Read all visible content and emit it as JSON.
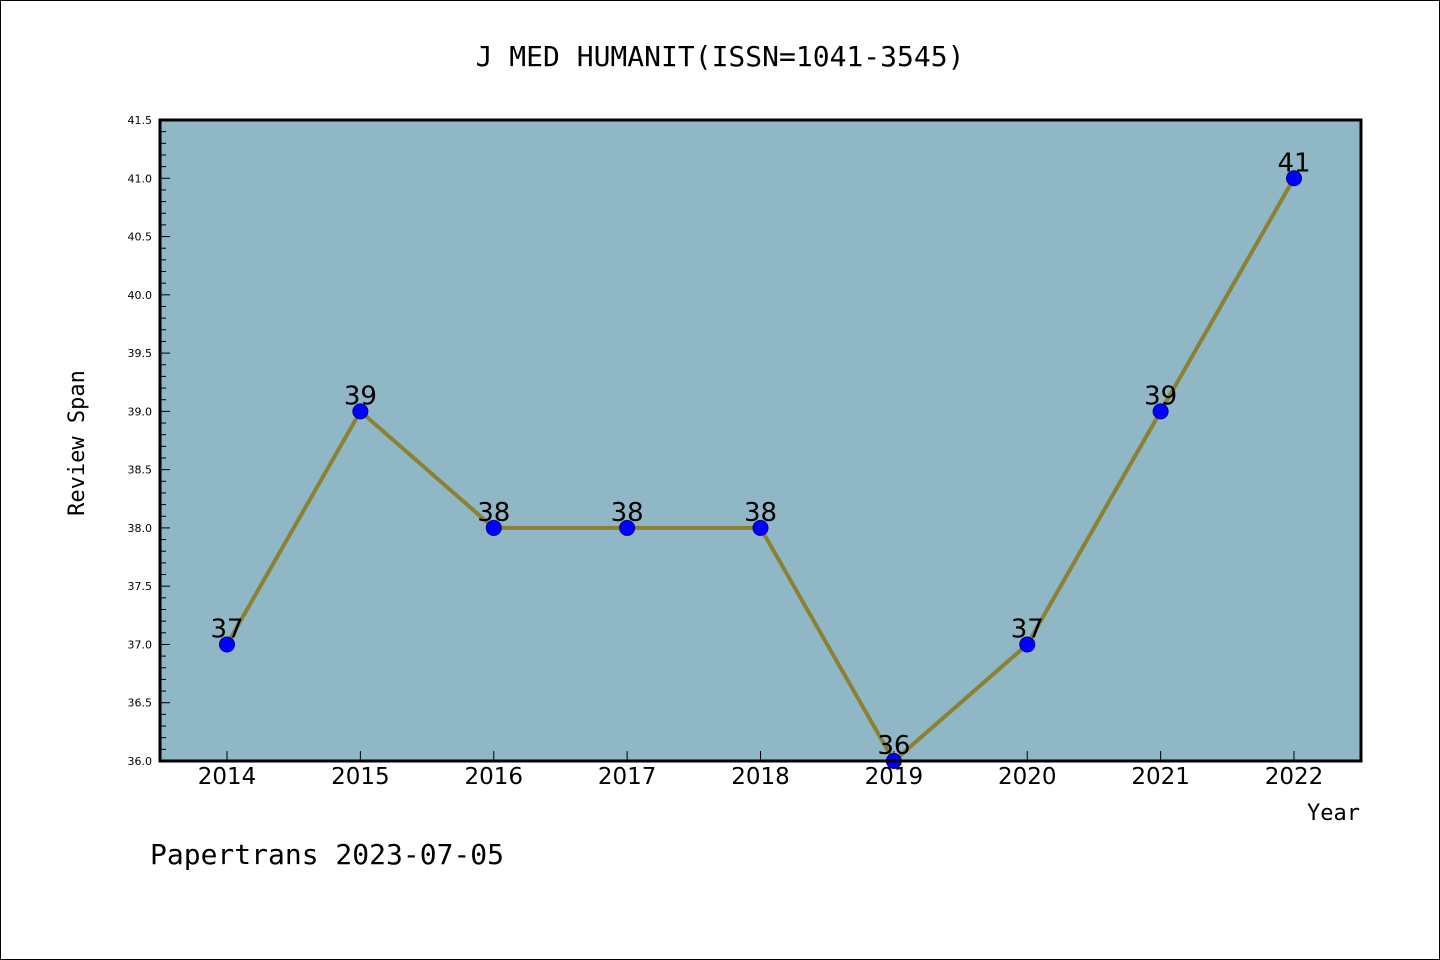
{
  "chart_data": {
    "type": "line",
    "title": "J MED HUMANIT(ISSN=1041-3545)",
    "xlabel": "Year",
    "ylabel": "Review Span",
    "footer": "Papertrans 2023-07-05",
    "categories": [
      "2014",
      "2015",
      "2016",
      "2017",
      "2018",
      "2019",
      "2020",
      "2021",
      "2022"
    ],
    "series": [
      {
        "values": [
          37,
          39,
          38,
          38,
          38,
          36,
          37,
          39,
          41
        ],
        "data_labels": [
          "37",
          "39",
          "38",
          "38",
          "38",
          "36",
          "37",
          "39",
          "41"
        ]
      }
    ],
    "ylim": [
      36.0,
      41.5
    ],
    "y_ticks": [
      "36.0",
      "36.5",
      "37.0",
      "37.5",
      "38.0",
      "38.5",
      "39.0",
      "39.5",
      "40.0",
      "40.5",
      "41.0",
      "41.5"
    ],
    "grid": false,
    "legend": "none",
    "colors": {
      "plot_background": "#8fb7c5",
      "line": "#8c8033",
      "marker": "#0000ff",
      "marker_edge": "#00008b"
    }
  }
}
